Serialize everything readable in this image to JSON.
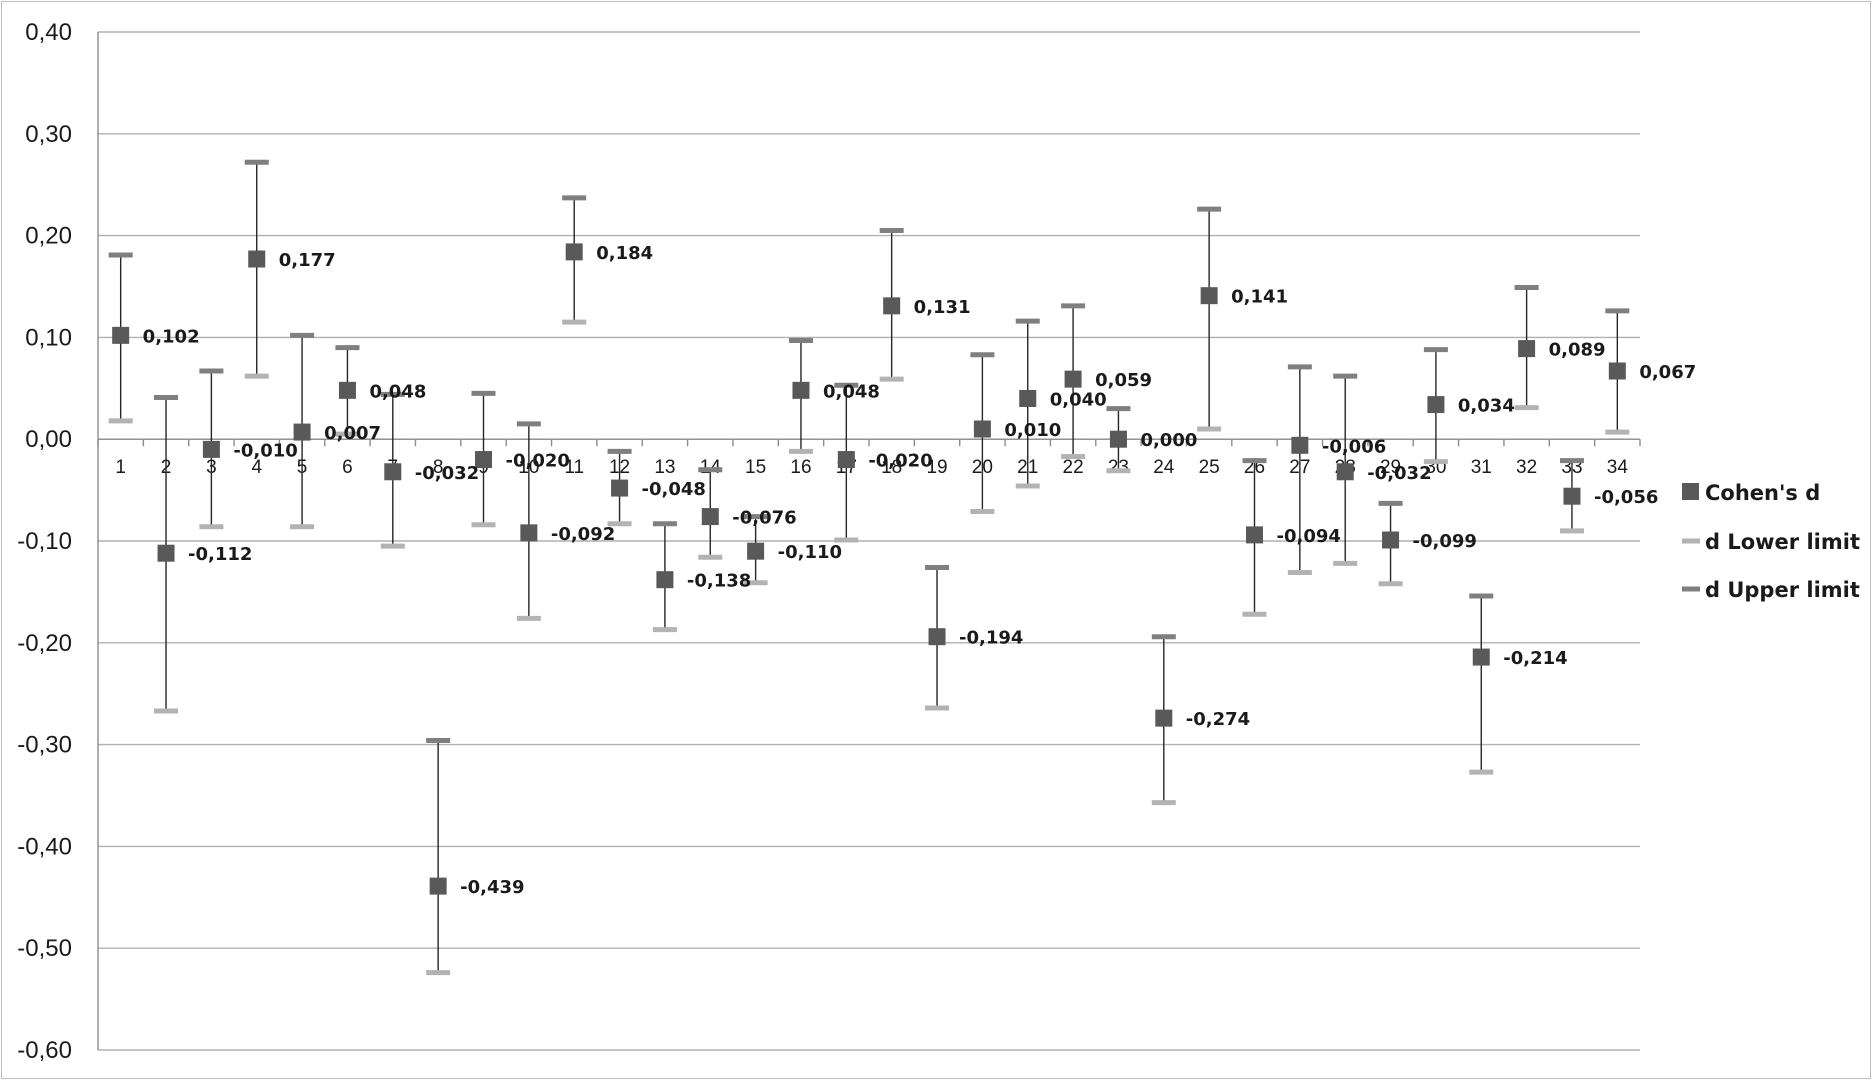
{
  "chart_data": {
    "type": "scatter",
    "title": "",
    "xlabel": "",
    "ylabel": "",
    "ylim": [
      -0.6,
      0.4
    ],
    "y_ticks": [
      "0,40",
      "0,30",
      "0,20",
      "0,10",
      "0,00",
      "-0,10",
      "-0,20",
      "-0,30",
      "-0,40",
      "-0,50",
      "-0,60"
    ],
    "categories": [
      "1",
      "2",
      "3",
      "4",
      "5",
      "6",
      "7",
      "8",
      "9",
      "10",
      "11",
      "12",
      "13",
      "14",
      "15",
      "16",
      "17",
      "18",
      "19",
      "20",
      "21",
      "22",
      "23",
      "24",
      "25",
      "26",
      "27",
      "28",
      "29",
      "30",
      "31",
      "32",
      "33",
      "34"
    ],
    "grid": "horizontal",
    "legend_position": "right",
    "series": [
      {
        "name": "Cohen's d",
        "color": "#595959",
        "marker": "square",
        "values": [
          0.102,
          -0.112,
          -0.01,
          0.177,
          0.007,
          0.048,
          -0.032,
          -0.439,
          -0.02,
          -0.092,
          0.184,
          -0.048,
          -0.138,
          -0.076,
          -0.11,
          0.048,
          -0.02,
          0.131,
          -0.194,
          0.01,
          0.04,
          0.059,
          0.0,
          -0.274,
          0.141,
          -0.094,
          -0.006,
          -0.032,
          -0.099,
          0.034,
          -0.214,
          0.089,
          -0.056,
          0.067
        ],
        "labels": [
          "0,102",
          "-0,112",
          "-0,010",
          "0,177",
          "0,007",
          "0,048",
          "-0,032",
          "-0,439",
          "-0,020",
          "-0,092",
          "0,184",
          "-0,048",
          "-0,138",
          "-0,076",
          "-0,110",
          "0,048",
          "-0,020",
          "0,131",
          "-0,194",
          "0,010",
          "0,040",
          "0,059",
          "0,000",
          "-0,274",
          "0,141",
          "-0,094",
          "-0,006",
          "-0,032",
          "-0,099",
          "0,034",
          "-0,214",
          "0,089",
          "-0,056",
          "0,067"
        ]
      },
      {
        "name": "d Lower limit",
        "color": "#b3b3b3",
        "marker": "dash",
        "values": [
          0.018,
          -0.267,
          -0.086,
          0.062,
          -0.086,
          0.005,
          -0.105,
          -0.524,
          -0.084,
          -0.176,
          0.115,
          -0.083,
          -0.187,
          -0.116,
          -0.141,
          -0.012,
          -0.099,
          0.059,
          -0.264,
          -0.071,
          -0.046,
          -0.017,
          -0.031,
          -0.357,
          0.01,
          -0.172,
          -0.131,
          -0.122,
          -0.142,
          -0.022,
          -0.327,
          0.031,
          -0.09,
          0.007
        ]
      },
      {
        "name": "d Upper limit",
        "color": "#7f7f7f",
        "marker": "dash",
        "values": [
          0.181,
          0.041,
          0.067,
          0.272,
          0.102,
          0.09,
          0.044,
          -0.296,
          0.045,
          0.015,
          0.237,
          -0.012,
          -0.083,
          -0.03,
          -0.076,
          0.097,
          0.053,
          0.205,
          -0.126,
          0.083,
          0.116,
          0.131,
          0.03,
          -0.194,
          0.226,
          -0.021,
          0.071,
          0.062,
          -0.063,
          0.088,
          -0.154,
          0.149,
          -0.021,
          0.126
        ]
      }
    ]
  }
}
